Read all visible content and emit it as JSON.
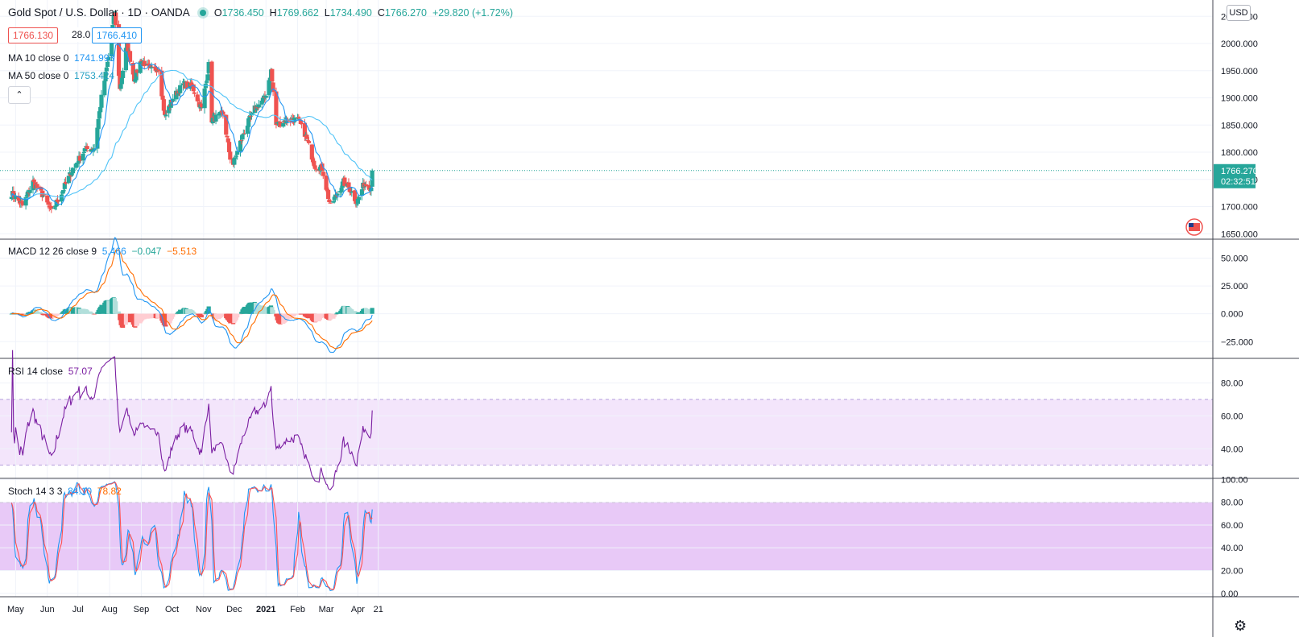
{
  "header": {
    "symbol": "Gold Spot / U.S. Dollar · 1D · OANDA",
    "o_label": "O",
    "o_value": "1736.450",
    "h_label": "H",
    "h_value": "1769.662",
    "l_label": "L",
    "l_value": "1734.490",
    "c_label": "C",
    "c_value": "1766.270",
    "change": "+29.820 (+1.72%)"
  },
  "quote": {
    "bid": "1766.130",
    "spread": "28.0",
    "ask": "1766.410"
  },
  "ma10": {
    "label": "MA 10 close 0",
    "value": "1741.993"
  },
  "ma50": {
    "label": "MA 50 close 0",
    "value": "1753.424"
  },
  "collapse_glyph": "⌃",
  "currency": "USD",
  "price_label": {
    "price": "1766.270",
    "countdown": "02:32:51"
  },
  "colors": {
    "up": "#26a69a",
    "down": "#ef5350",
    "ma10": "#2196f3",
    "ma50": "#4fc3f7",
    "macd": "#2196f3",
    "signal": "#ff6d00",
    "rsi": "#7b1fa2",
    "stochK": "#2196f3",
    "stochD": "#ff5252"
  },
  "chart_data": {
    "type": "candlestick",
    "time_axis": [
      "May",
      "Jun",
      "Jul",
      "Aug",
      "Sep",
      "Oct",
      "Nov",
      "Dec",
      "2021",
      "Feb",
      "Mar",
      "Apr",
      "21"
    ],
    "price_axis": [
      "2050.000",
      "2000.000",
      "1950.000",
      "1900.000",
      "1850.000",
      "1800.000",
      "1750.000",
      "1700.000",
      "1650.000"
    ],
    "price_range": [
      1640,
      2080
    ],
    "close_anchors": [
      [
        "2020-04-27",
        1725
      ],
      [
        "2020-05-08",
        1702
      ],
      [
        "2020-05-18",
        1745
      ],
      [
        "2020-05-28",
        1720
      ],
      [
        "2020-06-05",
        1690
      ],
      [
        "2020-06-15",
        1725
      ],
      [
        "2020-06-26",
        1770
      ],
      [
        "2020-07-08",
        1805
      ],
      [
        "2020-07-17",
        1808
      ],
      [
        "2020-07-24",
        1900
      ],
      [
        "2020-07-31",
        1975
      ],
      [
        "2020-08-06",
        2060
      ],
      [
        "2020-08-11",
        1915
      ],
      [
        "2020-08-18",
        2000
      ],
      [
        "2020-08-25",
        1935
      ],
      [
        "2020-09-01",
        1970
      ],
      [
        "2020-09-10",
        1950
      ],
      [
        "2020-09-18",
        1955
      ],
      [
        "2020-09-24",
        1865
      ],
      [
        "2020-10-02",
        1900
      ],
      [
        "2020-10-12",
        1925
      ],
      [
        "2020-10-21",
        1920
      ],
      [
        "2020-10-30",
        1880
      ],
      [
        "2020-11-06",
        1960
      ],
      [
        "2020-11-09",
        1860
      ],
      [
        "2020-11-20",
        1870
      ],
      [
        "2020-11-27",
        1790
      ],
      [
        "2020-11-30",
        1778
      ],
      [
        "2020-12-10",
        1835
      ],
      [
        "2020-12-21",
        1880
      ],
      [
        "2020-12-31",
        1900
      ],
      [
        "2021-01-06",
        1950
      ],
      [
        "2021-01-11",
        1850
      ],
      [
        "2021-01-22",
        1860
      ],
      [
        "2021-02-01",
        1860
      ],
      [
        "2021-02-08",
        1835
      ],
      [
        "2021-02-18",
        1775
      ],
      [
        "2021-02-25",
        1770
      ],
      [
        "2021-03-05",
        1700
      ],
      [
        "2021-03-09",
        1715
      ],
      [
        "2021-03-18",
        1745
      ],
      [
        "2021-03-25",
        1730
      ],
      [
        "2021-03-31",
        1707
      ],
      [
        "2021-04-07",
        1742
      ],
      [
        "2021-04-14",
        1736
      ],
      [
        "2021-04-15",
        1766
      ]
    ],
    "last": {
      "open": 1736.45,
      "high": 1769.662,
      "low": 1734.49,
      "close": 1766.27
    },
    "overlays": [
      {
        "name": "MA 10 close 0",
        "value": 1741.993
      },
      {
        "name": "MA 50 close 0",
        "value": 1753.424
      }
    ],
    "panes": [
      {
        "name": "MACD 12 26 close 9",
        "values": [
          "5.466",
          "−0.047",
          "−5.513"
        ],
        "axis": [
          "50.000",
          "25.000",
          "0.000",
          "−25.000"
        ],
        "range": [
          -40,
          67
        ]
      },
      {
        "name": "RSI 14 close",
        "values": [
          "57.07"
        ],
        "axis": [
          "80.00",
          "60.00",
          "40.00"
        ],
        "range": [
          22,
          95
        ],
        "bands": [
          30,
          70
        ]
      },
      {
        "name": "Stoch 14 3 3",
        "values": [
          "84.10",
          "78.82"
        ],
        "axis": [
          "100.00",
          "80.00",
          "60.00",
          "40.00",
          "20.00",
          "0.00"
        ],
        "range": [
          -3,
          101
        ],
        "bands": [
          20,
          80
        ]
      }
    ]
  }
}
